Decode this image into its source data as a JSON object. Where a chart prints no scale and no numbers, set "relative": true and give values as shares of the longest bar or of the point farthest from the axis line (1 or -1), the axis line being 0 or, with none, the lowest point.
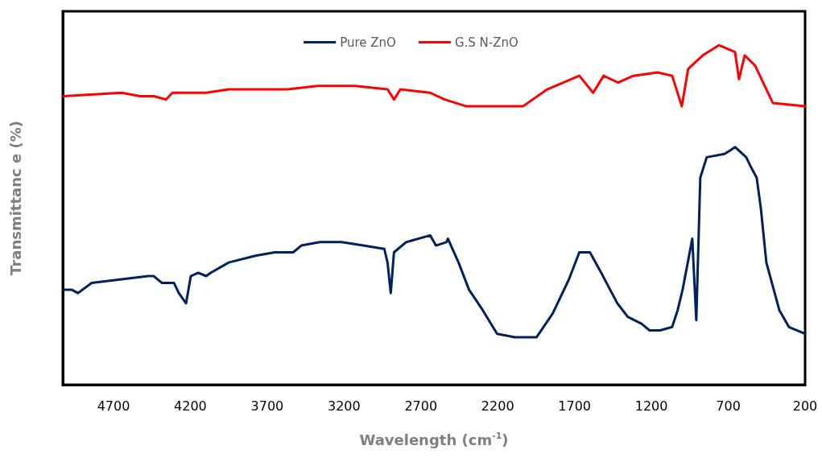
{
  "chart_data": {
    "type": "line",
    "relative": true,
    "xlabel": "Wavelength (cm$^{-1}$)",
    "ylabel": "Transmittanc e (%)",
    "xlim": [
      5030,
      200
    ],
    "xticks": [
      4700,
      4200,
      3700,
      3200,
      2700,
      2200,
      1700,
      1200,
      700,
      200
    ],
    "legend": "top",
    "grid": false,
    "marker": "none",
    "line_style": "solid",
    "series": [
      {
        "name": "Pure ZnO",
        "color": "#002060",
        "x": [
          5025,
          4973,
          4931,
          4842,
          4475,
          4438,
          4386,
          4307,
          4275,
          4228,
          4197,
          4149,
          4097,
          4066,
          3950,
          3777,
          3651,
          3531,
          3478,
          3357,
          3216,
          3074,
          2938,
          2917,
          2896,
          2875,
          2796,
          2639,
          2602,
          2534,
          2524,
          2455,
          2387,
          2298,
          2204,
          2088,
          1947,
          1842,
          1737,
          1669,
          1600,
          1527,
          1422,
          1354,
          1265,
          1212,
          1144,
          1065,
          1029,
          997,
          934,
          908,
          882,
          840,
          725,
          688,
          656,
          583,
          551,
          515,
          488,
          452,
          410,
          368,
          305,
          200
        ],
        "values": [
          0.28,
          0.28,
          0.27,
          0.3,
          0.32,
          0.32,
          0.3,
          0.3,
          0.27,
          0.24,
          0.32,
          0.33,
          0.32,
          0.33,
          0.36,
          0.38,
          0.39,
          0.39,
          0.41,
          0.42,
          0.42,
          0.41,
          0.4,
          0.36,
          0.27,
          0.39,
          0.42,
          0.44,
          0.41,
          0.42,
          0.43,
          0.36,
          0.28,
          0.22,
          0.15,
          0.14,
          0.14,
          0.21,
          0.31,
          0.39,
          0.39,
          0.33,
          0.24,
          0.2,
          0.18,
          0.16,
          0.16,
          0.17,
          0.22,
          0.28,
          0.43,
          0.19,
          0.61,
          0.67,
          0.68,
          0.69,
          0.7,
          0.67,
          0.64,
          0.61,
          0.52,
          0.36,
          0.29,
          0.22,
          0.17,
          0.15
        ]
      },
      {
        "name": "G.S N-ZnO",
        "color": "#ff0000",
        "x": [
          5025,
          4648,
          4527,
          4438,
          4359,
          4317,
          4144,
          4097,
          3950,
          3567,
          3373,
          3127,
          2917,
          2875,
          2833,
          2639,
          2545,
          2403,
          2036,
          1878,
          1669,
          1579,
          1511,
          1417,
          1317,
          1160,
          1065,
          1002,
          961,
          866,
          761,
          656,
          630,
          593,
          525,
          473,
          410,
          200
        ],
        "values": [
          0.85,
          0.86,
          0.85,
          0.85,
          0.84,
          0.86,
          0.86,
          0.86,
          0.87,
          0.87,
          0.88,
          0.88,
          0.87,
          0.84,
          0.87,
          0.86,
          0.84,
          0.82,
          0.82,
          0.87,
          0.91,
          0.86,
          0.91,
          0.89,
          0.91,
          0.92,
          0.91,
          0.82,
          0.93,
          0.97,
          1,
          0.98,
          0.9,
          0.97,
          0.94,
          0.89,
          0.83,
          0.82
        ]
      }
    ]
  }
}
